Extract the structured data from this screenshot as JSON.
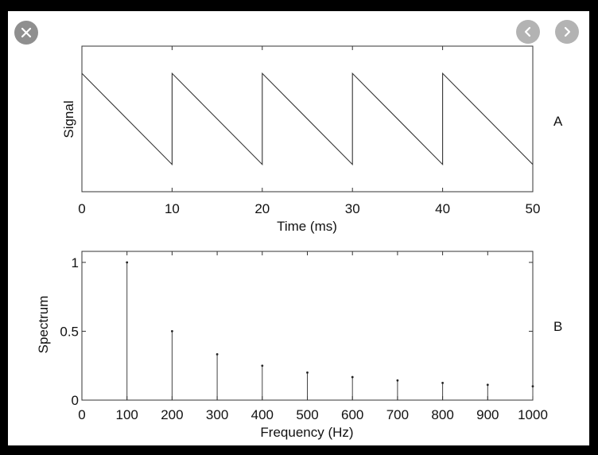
{
  "viewer": {
    "close_icon": "close-icon",
    "prev_icon": "chevron-left-icon",
    "next_icon": "chevron-right-icon",
    "button_color": "#9a9a9a"
  },
  "chart_data": [
    {
      "type": "line",
      "panel_label": "A",
      "xlabel": "Time (ms)",
      "ylabel": "Signal",
      "xlim": [
        0,
        50
      ],
      "ylim": [
        -1.6,
        1.6
      ],
      "xticks": [
        0,
        10,
        20,
        30,
        40,
        50
      ],
      "xtick_labels": [
        "0",
        "10",
        "20",
        "30",
        "40",
        "50"
      ],
      "grid": false,
      "series": [
        {
          "x": [
            0,
            10,
            10,
            20,
            20,
            30,
            30,
            40,
            40,
            50
          ],
          "y": [
            1,
            -1,
            1,
            -1,
            1,
            -1,
            1,
            -1,
            1,
            -1
          ]
        }
      ]
    },
    {
      "type": "stem",
      "panel_label": "B",
      "xlabel": "Frequency (Hz)",
      "ylabel": "Spectrum",
      "xlim": [
        0,
        1000
      ],
      "ylim": [
        0,
        1.08
      ],
      "xticks": [
        0,
        100,
        200,
        300,
        400,
        500,
        600,
        700,
        800,
        900,
        1000
      ],
      "xtick_labels": [
        "0",
        "100",
        "200",
        "300",
        "400",
        "500",
        "600",
        "700",
        "800",
        "900",
        "1000"
      ],
      "yticks": [
        0,
        0.5,
        1
      ],
      "ytick_labels": [
        "0",
        "0.5",
        "1"
      ],
      "grid": false,
      "series": [
        {
          "x": [
            100,
            200,
            300,
            400,
            500,
            600,
            700,
            800,
            900,
            1000
          ],
          "y": [
            1.0,
            0.5,
            0.333,
            0.25,
            0.2,
            0.167,
            0.143,
            0.125,
            0.111,
            0.1
          ]
        }
      ]
    }
  ]
}
